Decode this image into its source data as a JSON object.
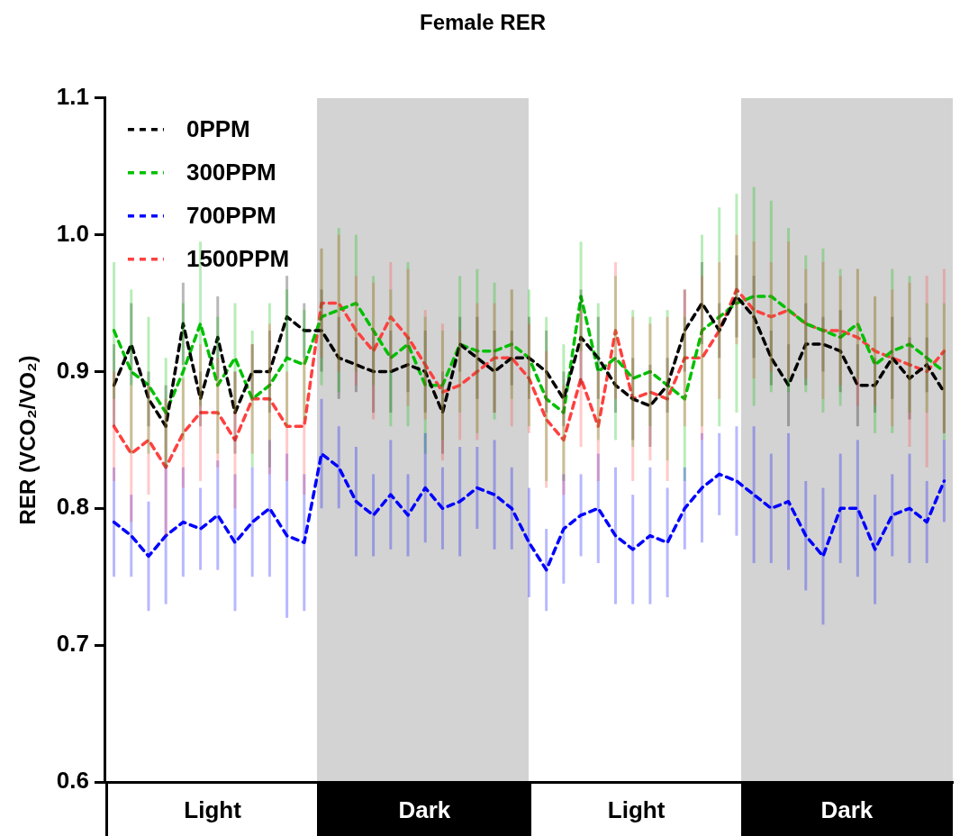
{
  "chart_data": {
    "type": "line",
    "title": "Female RER",
    "ylabel": "RER (VCO₂/VO₂)",
    "categories": [
      null,
      null,
      null,
      null,
      null,
      null,
      null,
      null,
      null,
      null,
      null,
      null,
      null,
      null,
      null,
      null,
      null,
      null,
      null,
      null,
      null,
      null,
      null,
      null,
      null,
      null,
      null,
      null,
      null,
      null,
      null,
      null,
      null,
      null,
      null,
      null,
      null,
      null,
      null,
      null,
      null,
      null,
      null,
      null,
      null,
      null,
      null,
      null,
      null
    ],
    "ylim": [
      0.6,
      1.1
    ],
    "yticks": [
      0.6,
      0.7,
      0.8,
      0.9,
      {
        "value": 1,
        "label": "1.0"
      },
      1.1
    ],
    "tick_labels": "y",
    "grid": false,
    "legend": "top left",
    "marker": "none",
    "line_style": "dashed",
    "annotations": [
      "Light",
      "Dark",
      "Light",
      "Dark"
    ],
    "series": [
      {
        "name": "0PPM",
        "color": "#000000",
        "values": [
          0.89,
          0.92,
          0.88,
          0.86,
          0.935,
          0.88,
          0.925,
          0.87,
          0.9,
          0.9,
          0.94,
          0.93,
          0.93,
          0.91,
          0.905,
          0.9,
          0.9,
          0.905,
          0.9,
          0.87,
          0.92,
          0.91,
          0.9,
          0.91,
          0.91,
          0.9,
          0.88,
          0.925,
          0.91,
          0.89,
          0.88,
          0.875,
          0.89,
          0.93,
          0.95,
          0.93,
          0.955,
          0.94,
          0.91,
          0.89,
          0.92,
          0.92,
          0.915,
          0.89,
          0.89,
          0.91,
          0.895,
          0.905,
          0.885
        ],
        "errors": [
          0.03,
          0.03,
          0.02,
          0.03,
          0.03,
          0.02,
          0.03,
          0.03,
          0.02,
          0.03,
          0.03,
          0.02,
          0.03,
          0.03,
          0.02,
          0.03,
          0.03,
          0.02,
          0.03,
          0.03,
          0.02,
          0.03,
          0.03,
          0.02,
          0.03,
          0.03,
          0.02,
          0.035,
          0.03,
          0.02,
          0.03,
          0.03,
          0.02,
          0.03,
          0.03,
          0.02,
          0.03,
          0.03,
          0.02,
          0.03,
          0.03,
          0.02,
          0.03,
          0.03,
          0.02,
          0.03,
          0.03,
          0.02,
          0.03
        ]
      },
      {
        "name": "300PPM",
        "color": "#00c000",
        "values": [
          0.93,
          0.9,
          0.89,
          0.87,
          0.9,
          0.935,
          0.89,
          0.91,
          0.88,
          0.89,
          0.91,
          0.905,
          0.94,
          0.945,
          0.95,
          0.93,
          0.91,
          0.92,
          0.89,
          0.89,
          0.92,
          0.915,
          0.915,
          0.92,
          0.91,
          0.88,
          0.87,
          0.955,
          0.9,
          0.91,
          0.895,
          0.9,
          0.89,
          0.88,
          0.93,
          0.94,
          0.95,
          0.955,
          0.955,
          0.945,
          0.935,
          0.93,
          0.925,
          0.935,
          0.905,
          0.915,
          0.92,
          0.91,
          0.9
        ],
        "errors": [
          0.05,
          0.06,
          0.05,
          0.04,
          0.05,
          0.06,
          0.05,
          0.04,
          0.05,
          0.06,
          0.05,
          0.04,
          0.05,
          0.06,
          0.05,
          0.04,
          0.05,
          0.06,
          0.05,
          0.04,
          0.05,
          0.06,
          0.05,
          0.04,
          0.05,
          0.06,
          0.05,
          0.04,
          0.05,
          0.06,
          0.05,
          0.04,
          0.055,
          0.06,
          0.07,
          0.08,
          0.08,
          0.08,
          0.07,
          0.06,
          0.05,
          0.06,
          0.05,
          0.04,
          0.05,
          0.06,
          0.05,
          0.04,
          0.05
        ]
      },
      {
        "name": "700PPM",
        "color": "#0000ff",
        "values": [
          0.79,
          0.78,
          0.765,
          0.78,
          0.79,
          0.785,
          0.795,
          0.775,
          0.79,
          0.8,
          0.78,
          0.775,
          0.84,
          0.83,
          0.805,
          0.795,
          0.81,
          0.795,
          0.815,
          0.8,
          0.805,
          0.815,
          0.81,
          0.8,
          0.775,
          0.755,
          0.785,
          0.795,
          0.8,
          0.78,
          0.77,
          0.78,
          0.775,
          0.8,
          0.815,
          0.825,
          0.82,
          0.81,
          0.8,
          0.805,
          0.78,
          0.765,
          0.8,
          0.8,
          0.77,
          0.795,
          0.8,
          0.79,
          0.82
        ],
        "errors": [
          0.04,
          0.03,
          0.04,
          0.05,
          0.04,
          0.03,
          0.04,
          0.05,
          0.04,
          0.05,
          0.06,
          0.05,
          0.04,
          0.03,
          0.04,
          0.03,
          0.04,
          0.03,
          0.04,
          0.03,
          0.04,
          0.03,
          0.04,
          0.03,
          0.04,
          0.03,
          0.04,
          0.03,
          0.04,
          0.05,
          0.04,
          0.05,
          0.04,
          0.03,
          0.04,
          0.03,
          0.04,
          0.05,
          0.04,
          0.05,
          0.04,
          0.05,
          0.04,
          0.05,
          0.04,
          0.03,
          0.04,
          0.03,
          0.03
        ]
      },
      {
        "name": "1500PPM",
        "color": "#ff4040",
        "values": [
          0.86,
          0.84,
          0.85,
          0.83,
          0.855,
          0.87,
          0.87,
          0.85,
          0.88,
          0.88,
          0.86,
          0.86,
          0.95,
          0.95,
          0.93,
          0.915,
          0.94,
          0.925,
          0.905,
          0.885,
          0.89,
          0.9,
          0.91,
          0.91,
          0.895,
          0.865,
          0.85,
          0.895,
          0.86,
          0.93,
          0.88,
          0.885,
          0.88,
          0.91,
          0.91,
          0.93,
          0.96,
          0.945,
          0.94,
          0.945,
          0.935,
          0.93,
          0.93,
          0.925,
          0.915,
          0.91,
          0.905,
          0.9,
          0.915
        ],
        "errors": [
          0.04,
          0.05,
          0.04,
          0.05,
          0.04,
          0.05,
          0.04,
          0.05,
          0.04,
          0.055,
          0.04,
          0.05,
          0.04,
          0.05,
          0.04,
          0.05,
          0.04,
          0.05,
          0.04,
          0.05,
          0.04,
          0.05,
          0.04,
          0.05,
          0.04,
          0.05,
          0.04,
          0.05,
          0.04,
          0.05,
          0.06,
          0.05,
          0.06,
          0.05,
          0.06,
          0.05,
          0.04,
          0.05,
          0.04,
          0.05,
          0.04,
          0.05,
          0.04,
          0.05,
          0.04,
          0.05,
          0.06,
          0.07,
          0.06
        ]
      }
    ]
  }
}
